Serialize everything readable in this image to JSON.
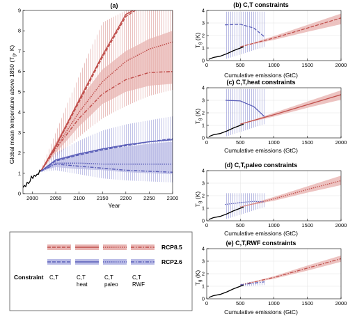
{
  "colors": {
    "rcp85": "#c0504d",
    "rcp85_band": "#e8b4b2",
    "rcp26": "#5b5fb8",
    "rcp26_band": "#b9bbe6",
    "observed": "#000000"
  },
  "legend": {
    "constraint_label": "Constraint",
    "columns": [
      {
        "line1": "C,T",
        "line2": "",
        "style": "dashed"
      },
      {
        "line1": "C,T",
        "line2": "heat",
        "style": "solid"
      },
      {
        "line1": "C,T",
        "line2": "paleo",
        "style": "dotted"
      },
      {
        "line1": "C,T",
        "line2": "RWF",
        "style": "dashdot"
      }
    ],
    "rcp85_label": "RCP8.5",
    "rcp26_label": "RCP2.6"
  },
  "chart_data": [
    {
      "type": "line",
      "panel": "a",
      "title": "(a)",
      "xlabel": "Year",
      "ylabel": "Global mean temperature above 1850 (T",
      "ylabel_sub": "g",
      "ylabel_end": ", K)",
      "xlim": [
        1980,
        2300
      ],
      "ylim": [
        0,
        9
      ],
      "xticks": [
        2000,
        2050,
        2100,
        2150,
        2200,
        2250,
        2300
      ],
      "yticks": [
        0,
        1,
        2,
        3,
        4,
        5,
        6,
        7,
        8,
        9
      ],
      "series": [
        {
          "scenario": "RCP8.5",
          "constraint": "C,T",
          "style": "dashed",
          "x": [
            2018,
            2050,
            2100,
            2150,
            2200,
            2220
          ],
          "y": [
            1.1,
            2.3,
            4.5,
            6.7,
            8.7,
            9.0
          ]
        },
        {
          "scenario": "RCP8.5",
          "constraint": "C,T heat",
          "style": "solid",
          "x": [
            2018,
            2050,
            2100,
            2150,
            2200,
            2215
          ],
          "y": [
            1.1,
            2.35,
            4.6,
            6.8,
            8.8,
            9.0
          ]
        },
        {
          "scenario": "RCP8.5",
          "constraint": "C,T paleo",
          "style": "dotted",
          "x": [
            2018,
            2050,
            2100,
            2150,
            2200,
            2250,
            2300
          ],
          "y": [
            1.1,
            2.25,
            4.0,
            5.5,
            6.5,
            7.1,
            7.45
          ]
        },
        {
          "scenario": "RCP8.5",
          "constraint": "C,T RWF",
          "style": "dashdot",
          "x": [
            2018,
            2050,
            2100,
            2150,
            2200,
            2250,
            2300
          ],
          "y": [
            1.1,
            2.2,
            3.7,
            4.9,
            5.6,
            5.95,
            6.0
          ]
        },
        {
          "scenario": "RCP2.6",
          "constraint": "C,T",
          "style": "dashed",
          "x": [
            2018,
            2050,
            2100,
            2150,
            2200,
            2250,
            2300
          ],
          "y": [
            1.1,
            1.6,
            1.9,
            2.15,
            2.35,
            2.55,
            2.7
          ]
        },
        {
          "scenario": "RCP2.6",
          "constraint": "C,T heat",
          "style": "solid",
          "x": [
            2018,
            2050,
            2100,
            2150,
            2200,
            2250,
            2300
          ],
          "y": [
            1.1,
            1.65,
            1.95,
            2.2,
            2.4,
            2.55,
            2.65
          ]
        },
        {
          "scenario": "RCP2.6",
          "constraint": "C,T paleo",
          "style": "dotted",
          "x": [
            2018,
            2050,
            2100,
            2150,
            2200,
            2250,
            2300
          ],
          "y": [
            1.1,
            1.5,
            1.5,
            1.45,
            1.45,
            1.45,
            1.45
          ]
        },
        {
          "scenario": "RCP2.6",
          "constraint": "C,T RWF",
          "style": "dashdot",
          "x": [
            2018,
            2050,
            2100,
            2150,
            2200,
            2250,
            2300
          ],
          "y": [
            1.1,
            1.45,
            1.35,
            1.25,
            1.15,
            1.1,
            1.05
          ]
        }
      ],
      "bands": [
        {
          "scenario": "RCP8.5",
          "kind": "wide",
          "x": [
            2018,
            2050,
            2100,
            2150,
            2200,
            2250,
            2300
          ],
          "lower": [
            1.05,
            1.8,
            2.8,
            3.7,
            4.3,
            4.8,
            5.1
          ],
          "upper": [
            1.15,
            3.0,
            5.8,
            8.4,
            9.0,
            9.0,
            9.0
          ]
        },
        {
          "scenario": "RCP8.5",
          "kind": "narrow",
          "x": [
            2018,
            2050,
            2100,
            2150,
            2200,
            2250,
            2300
          ],
          "lower": [
            1.1,
            2.0,
            3.3,
            4.4,
            5.0,
            5.3,
            5.4
          ],
          "upper": [
            1.1,
            2.5,
            4.6,
            6.1,
            7.0,
            7.6,
            8.0
          ]
        },
        {
          "scenario": "RCP2.6",
          "kind": "wide",
          "x": [
            2018,
            2050,
            2100,
            2150,
            2200,
            2250,
            2300
          ],
          "lower": [
            1.05,
            1.15,
            0.95,
            0.75,
            0.65,
            0.6,
            0.55
          ],
          "upper": [
            1.15,
            2.0,
            2.6,
            3.1,
            3.4,
            3.6,
            3.8
          ]
        },
        {
          "scenario": "RCP2.6",
          "kind": "narrow",
          "x": [
            2018,
            2050,
            2100,
            2150,
            2200,
            2250,
            2300
          ],
          "lower": [
            1.1,
            1.3,
            1.2,
            1.15,
            1.05,
            1.0,
            0.95
          ],
          "upper": [
            1.1,
            1.7,
            2.0,
            2.15,
            2.3,
            2.45,
            2.55
          ]
        }
      ],
      "observed": {
        "x": [
          1980,
          1983,
          1986,
          1989,
          1992,
          1995,
          1998,
          2001,
          2004,
          2007,
          2010,
          2013,
          2016,
          2018
        ],
        "y": [
          0.3,
          0.4,
          0.35,
          0.55,
          0.5,
          0.6,
          0.85,
          0.75,
          0.9,
          0.85,
          0.95,
          0.95,
          1.15,
          1.1
        ]
      }
    },
    {
      "type": "line",
      "panel": "b",
      "title": "(b) C,T constraints",
      "xlabel": "Cumulative emissions (GtC)",
      "ylabel": "T",
      "ylabel_sub": "g",
      "ylabel_end": " (K)",
      "xlim": [
        0,
        2000
      ],
      "ylim": [
        0,
        4
      ],
      "xticks": [
        0,
        500,
        1000,
        1500,
        2000
      ],
      "yticks": [
        0,
        1,
        2,
        3,
        4
      ],
      "curve26": {
        "x": [
          270,
          500,
          700,
          860
        ],
        "y": [
          2.85,
          2.9,
          2.6,
          1.9
        ]
      },
      "band26": {
        "x0": 270,
        "x1": 860,
        "lower": [
          0.1,
          1.1
        ],
        "upper": [
          3.9,
          3.9
        ]
      },
      "curve85": {
        "x": [
          500,
          1000,
          1500,
          2000
        ],
        "y": [
          1.1,
          1.8,
          2.6,
          3.4
        ]
      },
      "band85": {
        "x": [
          500,
          1000,
          1500,
          2000
        ],
        "lower": [
          1.1,
          1.65,
          2.3,
          2.9
        ],
        "upper": [
          1.1,
          1.95,
          2.85,
          3.75
        ]
      },
      "observed": {
        "x": [
          30,
          100,
          200,
          300,
          400,
          500,
          550
        ],
        "y": [
          0.1,
          0.25,
          0.35,
          0.55,
          0.8,
          1.0,
          1.1
        ]
      }
    },
    {
      "type": "line",
      "panel": "c",
      "title": "(c) C,T,heat constraints",
      "xlabel": "Cumulative emissions (GtC)",
      "ylabel": "T",
      "ylabel_sub": "g",
      "ylabel_end": " (K)",
      "xlim": [
        0,
        2000
      ],
      "ylim": [
        0,
        4
      ],
      "xticks": [
        0,
        500,
        1000,
        1500,
        2000
      ],
      "yticks": [
        0,
        1,
        2,
        3,
        4
      ],
      "curve26": {
        "x": [
          280,
          500,
          700,
          860
        ],
        "y": [
          3.0,
          2.95,
          2.5,
          1.7
        ]
      },
      "band26": {
        "x0": 280,
        "x1": 860,
        "lower": [
          0.1,
          1.1
        ],
        "upper": [
          3.9,
          3.9
        ]
      },
      "curve85": {
        "x": [
          500,
          1000,
          1500,
          2000
        ],
        "y": [
          1.1,
          1.85,
          2.65,
          3.45
        ]
      },
      "band85": {
        "x": [
          500,
          1000,
          1500,
          2000
        ],
        "lower": [
          1.1,
          1.7,
          2.4,
          3.05
        ],
        "upper": [
          1.1,
          2.0,
          2.9,
          3.8
        ]
      },
      "observed": {
        "x": [
          30,
          100,
          200,
          300,
          400,
          500,
          550
        ],
        "y": [
          0.1,
          0.25,
          0.35,
          0.55,
          0.8,
          1.0,
          1.1
        ]
      }
    },
    {
      "type": "line",
      "panel": "d",
      "title": "(d) C,T,paleo constraints",
      "xlabel": "Cumulative emissions (GtC)",
      "ylabel": "T",
      "ylabel_sub": "g",
      "ylabel_end": " (K)",
      "xlim": [
        0,
        2000
      ],
      "ylim": [
        0,
        4
      ],
      "xticks": [
        0,
        500,
        1000,
        1500,
        2000
      ],
      "yticks": [
        0,
        1,
        2,
        3,
        4
      ],
      "curve26": {
        "x": [
          270,
          500,
          700,
          860
        ],
        "y": [
          1.3,
          1.45,
          1.55,
          1.5
        ]
      },
      "band26": {
        "x0": 270,
        "x1": 860,
        "lower": [
          0.1,
          1.1
        ],
        "upper": [
          2.2,
          2.2
        ]
      },
      "curve85": {
        "x": [
          500,
          1000,
          1500,
          2000
        ],
        "y": [
          1.1,
          1.75,
          2.5,
          3.2
        ]
      },
      "band85": {
        "x": [
          500,
          1000,
          1500,
          2000
        ],
        "lower": [
          1.1,
          1.6,
          2.25,
          2.85
        ],
        "upper": [
          1.1,
          1.9,
          2.75,
          3.6
        ]
      },
      "observed": {
        "x": [
          30,
          100,
          200,
          300,
          400,
          500,
          550
        ],
        "y": [
          0.1,
          0.25,
          0.35,
          0.55,
          0.8,
          1.0,
          1.1
        ]
      }
    },
    {
      "type": "line",
      "panel": "e",
      "title": "(e) C,T,RWF constraints",
      "xlabel": "Cumulative emissions (GtC)",
      "ylabel": "T",
      "ylabel_sub": "g",
      "ylabel_end": " (K)",
      "xlim": [
        0,
        2000
      ],
      "ylim": [
        0,
        4
      ],
      "xticks": [
        0,
        500,
        1000,
        1500,
        2000
      ],
      "yticks": [
        0,
        1,
        2,
        3,
        4
      ],
      "curve26": {
        "x": [
          500,
          700,
          860
        ],
        "y": [
          1.1,
          1.25,
          1.35
        ]
      },
      "band26": {
        "x0": 500,
        "x1": 860,
        "lower": [
          1.0,
          1.1
        ],
        "upper": [
          1.2,
          1.55
        ]
      },
      "curve85": {
        "x": [
          500,
          1000,
          1500,
          2000
        ],
        "y": [
          1.1,
          1.7,
          2.45,
          3.2
        ]
      },
      "band85": {
        "x": [
          500,
          1000,
          1500,
          2000
        ],
        "lower": [
          1.1,
          1.6,
          2.25,
          2.95
        ],
        "upper": [
          1.1,
          1.8,
          2.65,
          3.45
        ]
      },
      "observed": {
        "x": [
          30,
          100,
          200,
          300,
          400,
          500,
          550
        ],
        "y": [
          0.1,
          0.25,
          0.35,
          0.55,
          0.8,
          1.0,
          1.1
        ]
      }
    }
  ]
}
